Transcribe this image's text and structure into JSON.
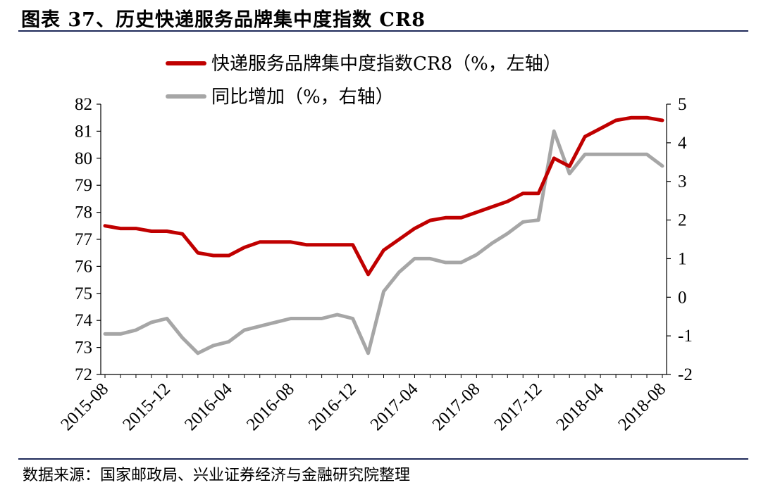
{
  "title": "图表 37、历史快递服务品牌集中度指数 CR8",
  "source": "数据来源：国家邮政局、兴业证券经济与金融研究院整理",
  "chart_data": {
    "type": "line",
    "x": [
      "2015-08",
      "2015-09",
      "2015-10",
      "2015-11",
      "2015-12",
      "2016-01",
      "2016-02",
      "2016-03",
      "2016-04",
      "2016-05",
      "2016-06",
      "2016-07",
      "2016-08",
      "2016-09",
      "2016-10",
      "2016-11",
      "2016-12",
      "2017-01",
      "2017-02",
      "2017-03",
      "2017-04",
      "2017-05",
      "2017-06",
      "2017-07",
      "2017-08",
      "2017-09",
      "2017-10",
      "2017-11",
      "2017-12",
      "2018-01",
      "2018-02",
      "2018-03",
      "2018-04",
      "2018-05",
      "2018-06",
      "2018-07",
      "2018-08"
    ],
    "x_tick_labels": [
      "2015-08",
      "2015-12",
      "2016-04",
      "2016-08",
      "2016-12",
      "2017-04",
      "2017-08",
      "2017-12",
      "2018-04",
      "2018-08"
    ],
    "series": [
      {
        "name": "快递服务品牌集中度指数CR8（%，左轴）",
        "axis": "left",
        "color": "#c00000",
        "values": [
          77.5,
          77.4,
          77.4,
          77.3,
          77.3,
          77.2,
          76.5,
          76.4,
          76.4,
          76.7,
          76.9,
          76.9,
          76.9,
          76.8,
          76.8,
          76.8,
          76.8,
          75.7,
          76.6,
          77.0,
          77.4,
          77.7,
          77.8,
          77.8,
          78.0,
          78.2,
          78.4,
          78.7,
          78.7,
          80.0,
          79.7,
          80.8,
          81.1,
          81.4,
          81.5,
          81.5,
          81.4
        ]
      },
      {
        "name": "同比增加（%，右轴）",
        "axis": "right",
        "color": "#a6a6a6",
        "values": [
          -0.95,
          -0.95,
          -0.85,
          -0.65,
          -0.55,
          -1.05,
          -1.45,
          -1.25,
          -1.15,
          -0.85,
          -0.75,
          -0.65,
          -0.55,
          -0.55,
          -0.55,
          -0.45,
          -0.55,
          -1.45,
          0.15,
          0.65,
          1.0,
          1.0,
          0.9,
          0.9,
          1.1,
          1.4,
          1.65,
          1.95,
          2.0,
          4.3,
          3.2,
          3.7,
          3.7,
          3.7,
          3.7,
          3.7,
          3.4
        ]
      }
    ],
    "y_left": {
      "min": 72,
      "max": 82,
      "ticks": [
        72,
        73,
        74,
        75,
        76,
        77,
        78,
        79,
        80,
        81,
        82
      ]
    },
    "y_right": {
      "min": -2,
      "max": 5,
      "ticks": [
        -2,
        -1,
        0,
        1,
        2,
        3,
        4,
        5
      ]
    },
    "legend_position": "top-center",
    "grid": false
  }
}
